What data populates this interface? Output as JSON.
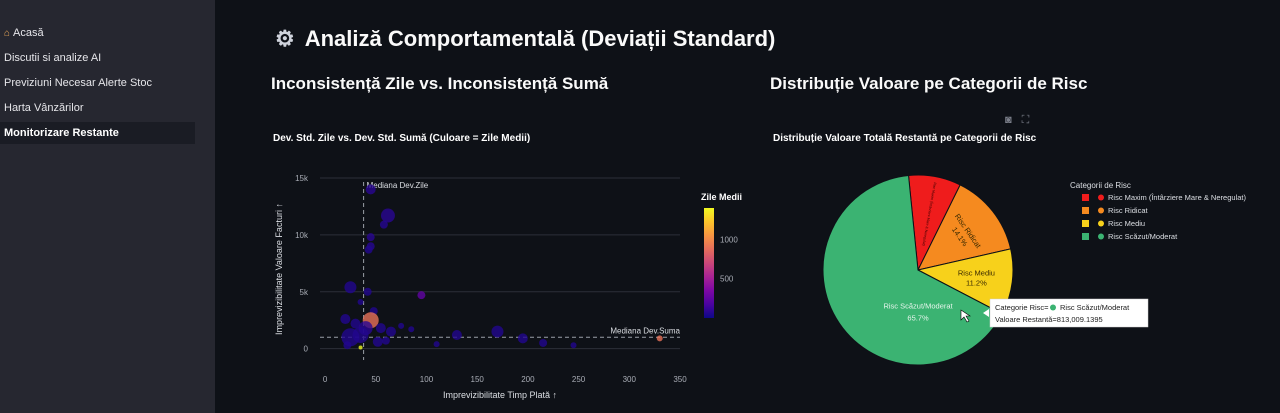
{
  "sidebar": {
    "items": [
      {
        "label": "Acasă",
        "icon": "house-icon"
      },
      {
        "label": "Discutii si analize AI"
      },
      {
        "label": "Previziuni Necesar Alerte Stoc"
      },
      {
        "label": "Harta Vânzărilor"
      },
      {
        "label": "Monitorizare Restante",
        "active": true
      }
    ]
  },
  "page": {
    "title": "Analiză Comportamentală (Deviații Standard)",
    "title_icon": "gear-icon"
  },
  "left_section": {
    "title": "Inconsistență Zile vs. Inconsistență Sumă"
  },
  "right_section": {
    "title": "Distribuție Valoare pe Categorii de Risc"
  },
  "toolbar": {
    "camera_icon": "camera-icon",
    "expand_icon": "expand-icon"
  },
  "chart_data": [
    {
      "type": "scatter",
      "title": "Dev. Std. Zile vs. Dev. Std. Sumă (Culoare = Zile Medii)",
      "xlabel": "Imprevizibilitate Timp Plată ↑",
      "ylabel": "Imprevizibilitate Valoare Facturi ↑",
      "xlim": [
        -5,
        350
      ],
      "ylim": [
        -1000,
        15000
      ],
      "xticks": [
        0,
        50,
        100,
        150,
        200,
        250,
        300,
        350
      ],
      "yticks": [
        {
          "v": 0,
          "label": "0"
        },
        {
          "v": 5000,
          "label": "5k"
        },
        {
          "v": 10000,
          "label": "10k"
        },
        {
          "v": 15000,
          "label": "15k"
        }
      ],
      "grid": true,
      "colorbar": {
        "title": "Zile Medii",
        "ticks": [
          500,
          1000
        ],
        "range": [
          0,
          1400
        ]
      },
      "ref_lines": [
        {
          "axis": "x",
          "value": 38,
          "label": "Mediana Dev.Zile"
        },
        {
          "axis": "y",
          "value": 1000,
          "label": "Mediana Dev.Suma"
        }
      ],
      "points": [
        {
          "x": 45,
          "y": 14000,
          "c": 80,
          "s": 5
        },
        {
          "x": 62,
          "y": 11700,
          "c": 80,
          "s": 7
        },
        {
          "x": 58,
          "y": 10900,
          "c": 70,
          "s": 4
        },
        {
          "x": 45,
          "y": 9800,
          "c": 80,
          "s": 4
        },
        {
          "x": 45,
          "y": 9000,
          "c": 70,
          "s": 4
        },
        {
          "x": 43,
          "y": 8700,
          "c": 60,
          "s": 4
        },
        {
          "x": 25,
          "y": 5400,
          "c": 60,
          "s": 6
        },
        {
          "x": 42,
          "y": 5000,
          "c": 60,
          "s": 4
        },
        {
          "x": 95,
          "y": 4700,
          "c": 250,
          "s": 4
        },
        {
          "x": 35,
          "y": 4100,
          "c": 60,
          "s": 3
        },
        {
          "x": 48,
          "y": 3300,
          "c": 60,
          "s": 4
        },
        {
          "x": 20,
          "y": 2600,
          "c": 60,
          "s": 5
        },
        {
          "x": 30,
          "y": 2200,
          "c": 60,
          "s": 5
        },
        {
          "x": 45,
          "y": 2500,
          "c": 900,
          "s": 8
        },
        {
          "x": 40,
          "y": 1800,
          "c": 80,
          "s": 7
        },
        {
          "x": 25,
          "y": 1000,
          "c": 60,
          "s": 9
        },
        {
          "x": 35,
          "y": 1200,
          "c": 60,
          "s": 8
        },
        {
          "x": 55,
          "y": 1800,
          "c": 60,
          "s": 5
        },
        {
          "x": 65,
          "y": 1500,
          "c": 60,
          "s": 5
        },
        {
          "x": 75,
          "y": 2000,
          "c": 60,
          "s": 3
        },
        {
          "x": 85,
          "y": 1700,
          "c": 60,
          "s": 3
        },
        {
          "x": 52,
          "y": 600,
          "c": 60,
          "s": 5
        },
        {
          "x": 60,
          "y": 700,
          "c": 60,
          "s": 4
        },
        {
          "x": 130,
          "y": 1200,
          "c": 60,
          "s": 5
        },
        {
          "x": 170,
          "y": 1500,
          "c": 60,
          "s": 6
        },
        {
          "x": 195,
          "y": 900,
          "c": 60,
          "s": 5
        },
        {
          "x": 215,
          "y": 500,
          "c": 60,
          "s": 4
        },
        {
          "x": 245,
          "y": 300,
          "c": 60,
          "s": 3
        },
        {
          "x": 22,
          "y": 300,
          "c": 60,
          "s": 4
        },
        {
          "x": 110,
          "y": 400,
          "c": 60,
          "s": 3
        },
        {
          "x": 330,
          "y": 900,
          "c": 900,
          "s": 3
        },
        {
          "x": 35,
          "y": 100,
          "c": 1400,
          "s": 2
        }
      ]
    },
    {
      "type": "pie",
      "title": "Distribuție Valoare Totală Restantă pe Categorii de Risc",
      "legend_title": "Categorii de Risc",
      "legend_placement": "right",
      "slices": [
        {
          "name": "Risc Maxim (Întârziere Mare & Neregulat)",
          "value": 8.9,
          "color": "#ef1c1c",
          "label": "Risc Maxim (Întârziere Mare & Neregulat)"
        },
        {
          "name": "Risc Ridicat",
          "value": 14.1,
          "color": "#f58a1f",
          "label": "Risc Ridicat",
          "pct": "14.1%"
        },
        {
          "name": "Risc Mediu",
          "value": 11.2,
          "color": "#f7d11b",
          "label": "Risc Mediu",
          "pct": "11.2%"
        },
        {
          "name": "Risc Scăzut/Moderat",
          "value": 65.7,
          "color": "#3bb372",
          "label": "Risc Scăzut/Moderat",
          "pct": "65.7%"
        }
      ],
      "tooltip": {
        "line1_label": "Categorie Risc=",
        "line1_value": "Risc Scăzut/Moderat",
        "line2": "Valoare Restantă=813,009.1395"
      }
    }
  ]
}
